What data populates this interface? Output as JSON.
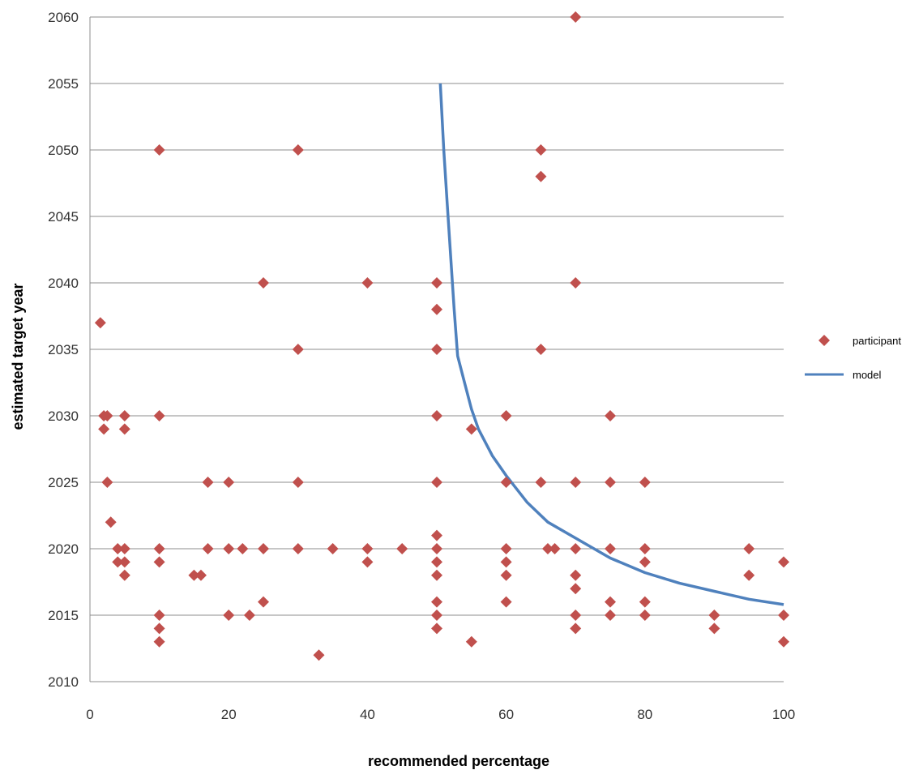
{
  "chart_data": {
    "type": "scatter",
    "xlabel": "recommended percentage",
    "ylabel": "estimated target year",
    "xlim": [
      0,
      100
    ],
    "ylim": [
      2010,
      2060
    ],
    "xticks": [
      "0",
      "20",
      "40",
      "60",
      "80",
      "100"
    ],
    "yticks": [
      "2010",
      "2015",
      "2020",
      "2025",
      "2030",
      "2035",
      "2040",
      "2045",
      "2050",
      "2055",
      "2060"
    ],
    "grid": "horizontal",
    "legend_position": "right",
    "colors": {
      "participant": "#C0504D",
      "model": "#4F81BD"
    },
    "series": [
      {
        "name": "participant",
        "type": "scatter",
        "marker": "diamond",
        "points": [
          [
            1.5,
            2037
          ],
          [
            2,
            2030
          ],
          [
            2.5,
            2030
          ],
          [
            2,
            2029
          ],
          [
            2.5,
            2025
          ],
          [
            3,
            2022
          ],
          [
            4,
            2020
          ],
          [
            4,
            2019
          ],
          [
            5,
            2020
          ],
          [
            5,
            2019
          ],
          [
            5,
            2018
          ],
          [
            5,
            2030
          ],
          [
            5,
            2029
          ],
          [
            10,
            2050
          ],
          [
            10,
            2030
          ],
          [
            10,
            2020
          ],
          [
            10,
            2019
          ],
          [
            10,
            2015
          ],
          [
            10,
            2014
          ],
          [
            10,
            2013
          ],
          [
            15,
            2018
          ],
          [
            16,
            2018
          ],
          [
            17,
            2025
          ],
          [
            17,
            2020
          ],
          [
            20,
            2025
          ],
          [
            20,
            2020
          ],
          [
            20,
            2015
          ],
          [
            22,
            2020
          ],
          [
            23,
            2015
          ],
          [
            25,
            2040
          ],
          [
            25,
            2020
          ],
          [
            25,
            2016
          ],
          [
            30,
            2050
          ],
          [
            30,
            2035
          ],
          [
            30,
            2025
          ],
          [
            30,
            2020
          ],
          [
            33,
            2012
          ],
          [
            35,
            2020
          ],
          [
            40,
            2040
          ],
          [
            40,
            2020
          ],
          [
            40,
            2019
          ],
          [
            45,
            2020
          ],
          [
            50,
            2040
          ],
          [
            50,
            2038
          ],
          [
            50,
            2035
          ],
          [
            50,
            2030
          ],
          [
            50,
            2025
          ],
          [
            50,
            2021
          ],
          [
            50,
            2020
          ],
          [
            50,
            2019
          ],
          [
            50,
            2018
          ],
          [
            50,
            2016
          ],
          [
            50,
            2015
          ],
          [
            50,
            2014
          ],
          [
            55,
            2029
          ],
          [
            55,
            2013
          ],
          [
            60,
            2030
          ],
          [
            60,
            2025
          ],
          [
            60,
            2020
          ],
          [
            60,
            2019
          ],
          [
            60,
            2018
          ],
          [
            60,
            2016
          ],
          [
            65,
            2050
          ],
          [
            65,
            2048
          ],
          [
            65,
            2035
          ],
          [
            65,
            2025
          ],
          [
            66,
            2020
          ],
          [
            67,
            2020
          ],
          [
            70,
            2060
          ],
          [
            70,
            2040
          ],
          [
            70,
            2025
          ],
          [
            70,
            2020
          ],
          [
            70,
            2018
          ],
          [
            70,
            2017
          ],
          [
            70,
            2015
          ],
          [
            70,
            2014
          ],
          [
            75,
            2030
          ],
          [
            75,
            2025
          ],
          [
            75,
            2020
          ],
          [
            75,
            2016
          ],
          [
            75,
            2015
          ],
          [
            80,
            2025
          ],
          [
            80,
            2020
          ],
          [
            80,
            2019
          ],
          [
            80,
            2016
          ],
          [
            80,
            2015
          ],
          [
            90,
            2015
          ],
          [
            90,
            2014
          ],
          [
            95,
            2020
          ],
          [
            95,
            2018
          ],
          [
            100,
            2019
          ],
          [
            100,
            2015
          ],
          [
            100,
            2013
          ]
        ]
      },
      {
        "name": "model",
        "type": "line",
        "points": [
          [
            50.5,
            2055
          ],
          [
            51,
            2050
          ],
          [
            51.5,
            2046
          ],
          [
            52,
            2042
          ],
          [
            52.5,
            2038
          ],
          [
            53,
            2034.5
          ],
          [
            54,
            2032.5
          ],
          [
            55,
            2030.5
          ],
          [
            56,
            2029
          ],
          [
            58,
            2027
          ],
          [
            60,
            2025.5
          ],
          [
            63,
            2023.5
          ],
          [
            66,
            2022
          ],
          [
            70,
            2020.8
          ],
          [
            75,
            2019.3
          ],
          [
            80,
            2018.2
          ],
          [
            85,
            2017.4
          ],
          [
            90,
            2016.8
          ],
          [
            95,
            2016.2
          ],
          [
            100,
            2015.8
          ]
        ]
      }
    ]
  }
}
